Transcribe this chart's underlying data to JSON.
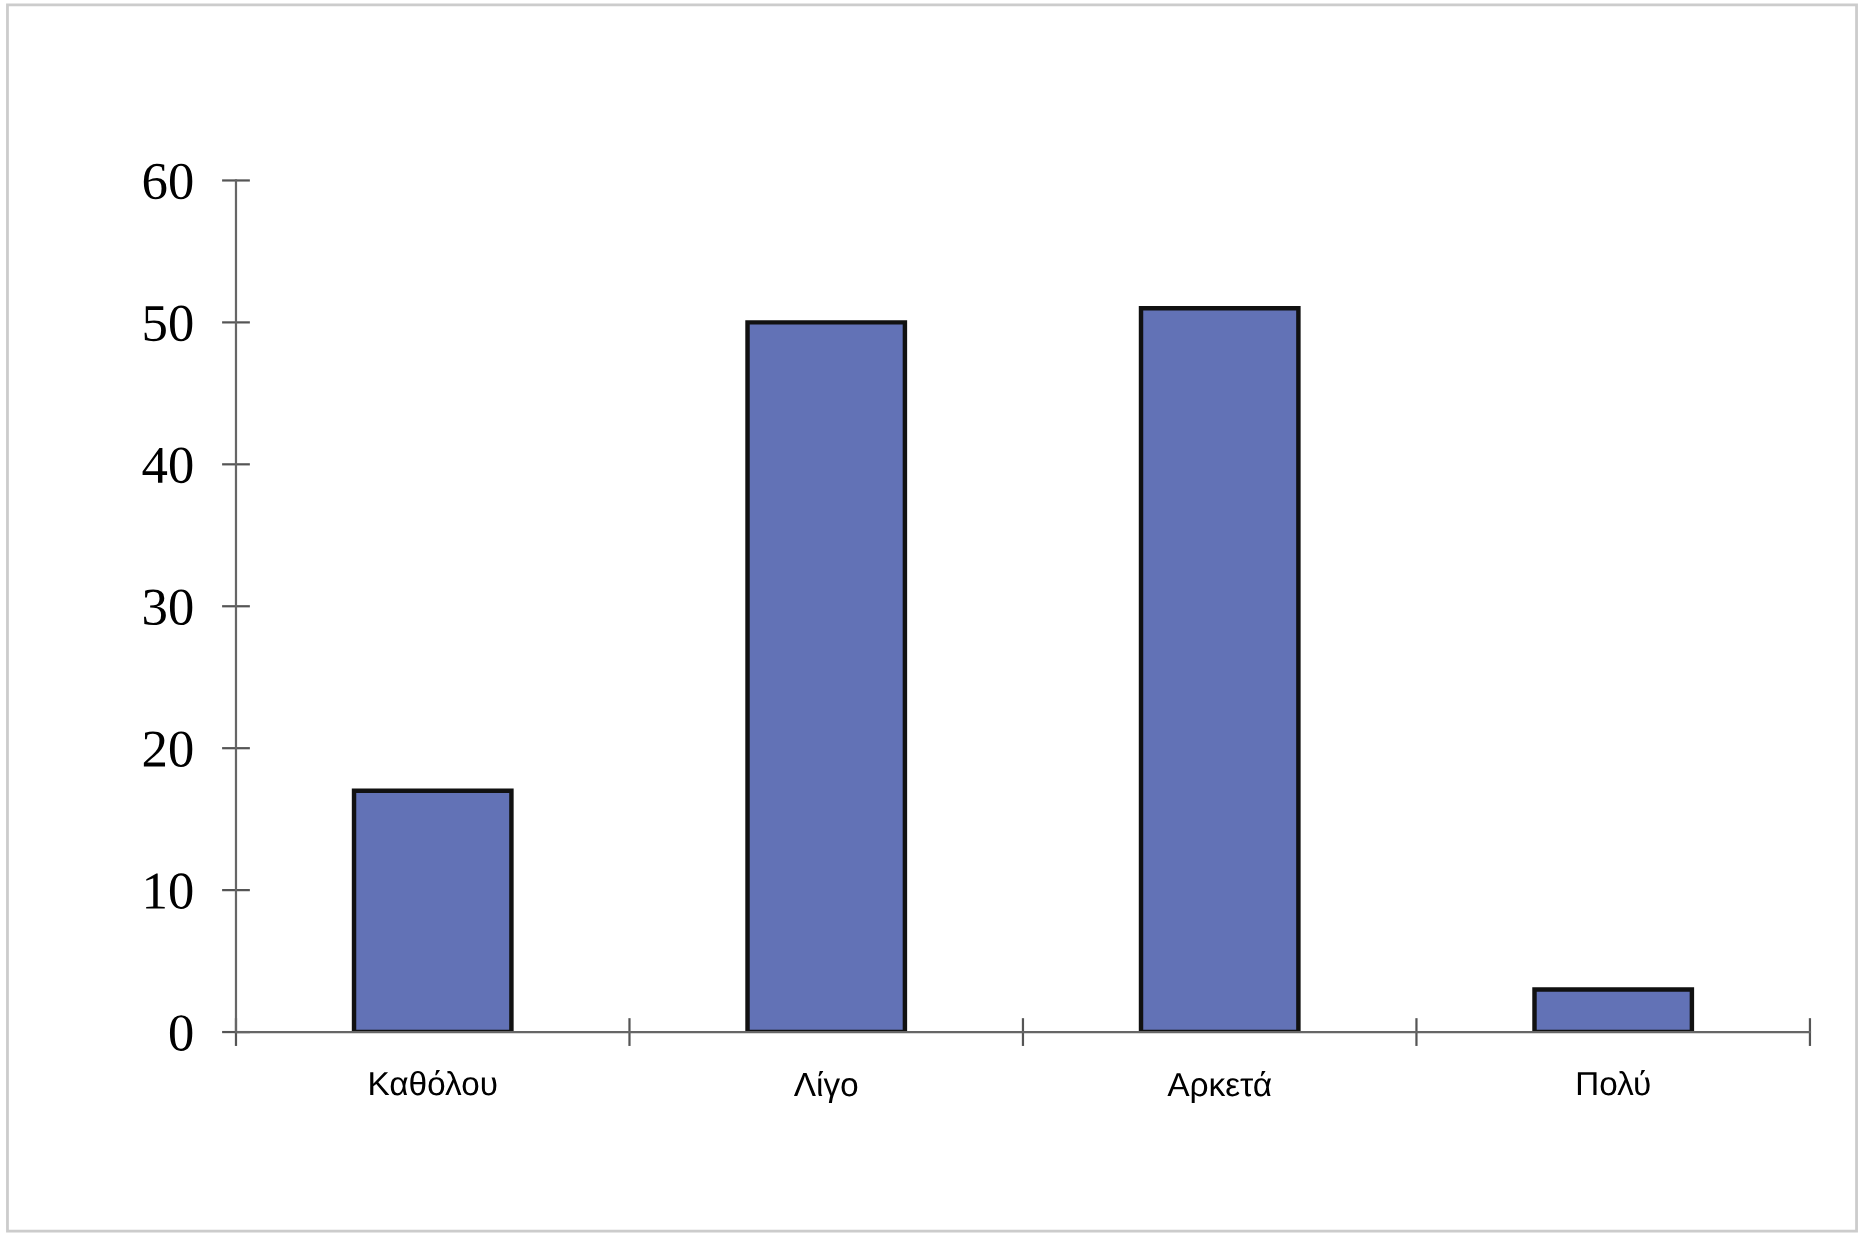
{
  "chart_data": {
    "type": "bar",
    "categories": [
      "Καθόλου",
      "Λίγο",
      "Αρκετά",
      "Πολύ"
    ],
    "values": [
      17,
      50,
      51,
      3
    ],
    "color": "#6272b6",
    "ylim": [
      0,
      60
    ],
    "yticks": [
      0,
      10,
      20,
      30,
      40,
      50,
      60
    ],
    "grid": false,
    "legend": false
  }
}
